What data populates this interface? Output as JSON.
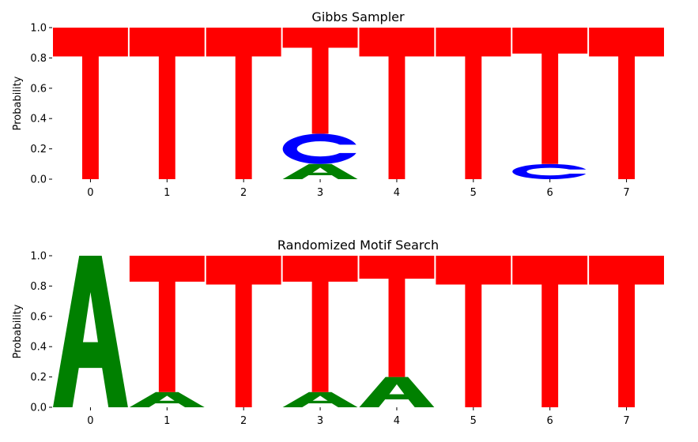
{
  "chart_data": [
    {
      "type": "sequence-logo",
      "title": "Gibbs Sampler",
      "ylabel": "Probability",
      "xlabel": "",
      "ylim": [
        0,
        1.0
      ],
      "yticks": [
        "0.0",
        "0.2",
        "0.4",
        "0.6",
        "0.8",
        "1.0"
      ],
      "positions": [
        "0",
        "1",
        "2",
        "3",
        "4",
        "5",
        "6",
        "7"
      ],
      "columns": [
        [
          {
            "letter": "T",
            "prob": 1.0
          }
        ],
        [
          {
            "letter": "T",
            "prob": 1.0
          }
        ],
        [
          {
            "letter": "T",
            "prob": 1.0
          }
        ],
        [
          {
            "letter": "A",
            "prob": 0.1
          },
          {
            "letter": "C",
            "prob": 0.2
          },
          {
            "letter": "T",
            "prob": 0.7
          }
        ],
        [
          {
            "letter": "T",
            "prob": 1.0
          }
        ],
        [
          {
            "letter": "T",
            "prob": 1.0
          }
        ],
        [
          {
            "letter": "C",
            "prob": 0.1
          },
          {
            "letter": "T",
            "prob": 0.9
          }
        ],
        [
          {
            "letter": "T",
            "prob": 1.0
          }
        ]
      ]
    },
    {
      "type": "sequence-logo",
      "title": "Randomized Motif Search",
      "ylabel": "Probability",
      "xlabel": "",
      "ylim": [
        0,
        1.0
      ],
      "yticks": [
        "0.0",
        "0.2",
        "0.4",
        "0.6",
        "0.8",
        "1.0"
      ],
      "positions": [
        "0",
        "1",
        "2",
        "3",
        "4",
        "5",
        "6",
        "7"
      ],
      "columns": [
        [
          {
            "letter": "A",
            "prob": 1.0
          }
        ],
        [
          {
            "letter": "A",
            "prob": 0.1
          },
          {
            "letter": "T",
            "prob": 0.9
          }
        ],
        [
          {
            "letter": "T",
            "prob": 1.0
          }
        ],
        [
          {
            "letter": "A",
            "prob": 0.1
          },
          {
            "letter": "T",
            "prob": 0.9
          }
        ],
        [
          {
            "letter": "A",
            "prob": 0.2
          },
          {
            "letter": "T",
            "prob": 0.8
          }
        ],
        [
          {
            "letter": "T",
            "prob": 1.0
          }
        ],
        [
          {
            "letter": "T",
            "prob": 1.0
          }
        ],
        [
          {
            "letter": "T",
            "prob": 1.0
          }
        ]
      ]
    }
  ],
  "colors": {
    "A": "#008000",
    "C": "#0000ff",
    "T": "#ff0000"
  }
}
